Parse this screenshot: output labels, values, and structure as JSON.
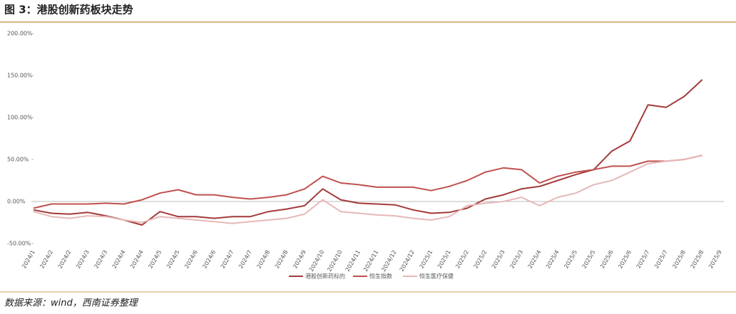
{
  "chart_data": {
    "type": "line",
    "title": "图 3：港股创新药板块走势",
    "source": "数据来源：wind，西南证券整理",
    "categories": [
      "2024/1",
      "2024/2",
      "2024/2",
      "2024/3",
      "2024/3",
      "2024/4",
      "2024/4",
      "2024/5",
      "2024/5",
      "2024/6",
      "2024/6",
      "2024/7",
      "2024/7",
      "2024/8",
      "2024/8",
      "2024/9",
      "2024/10",
      "2024/10",
      "2024/11",
      "2024/11",
      "2024/12",
      "2024/12",
      "2025/1",
      "2025/1",
      "2025/2",
      "2025/2",
      "2025/3",
      "2025/3",
      "2025/4",
      "2025/4",
      "2025/5",
      "2025/5",
      "2025/6",
      "2025/6",
      "2025/7",
      "2025/7",
      "2025/8",
      "2025/8",
      "2025/9"
    ],
    "series": [
      {
        "name": "港股创新药标的",
        "color": "#a33a3a",
        "values": [
          -10,
          -14,
          -15,
          -13,
          -17,
          -22,
          -28,
          -12,
          -18,
          -18,
          -20,
          -18,
          -18,
          -12,
          -9,
          -5,
          15,
          2,
          -2,
          -3,
          -4,
          -10,
          -14,
          -13,
          -8,
          3,
          8,
          15,
          18,
          25,
          32,
          38,
          60,
          72,
          115,
          112,
          125,
          145,
          null
        ]
      },
      {
        "name": "恒生指数",
        "color": "#c0504d",
        "values": [
          -8,
          -3,
          -3,
          -3,
          -2,
          -3,
          2,
          10,
          14,
          8,
          8,
          5,
          3,
          5,
          8,
          15,
          30,
          22,
          20,
          17,
          17,
          17,
          13,
          18,
          25,
          35,
          40,
          38,
          22,
          30,
          35,
          38,
          42,
          42,
          48,
          48,
          50,
          55,
          null
        ]
      },
      {
        "name": "恒生医疗保健",
        "color": "#e6b8b7",
        "values": [
          -12,
          -18,
          -20,
          -17,
          -18,
          -22,
          -25,
          -18,
          -20,
          -22,
          -24,
          -26,
          -24,
          -22,
          -20,
          -15,
          2,
          -12,
          -14,
          -16,
          -17,
          -20,
          -22,
          -18,
          -5,
          -2,
          0,
          5,
          -5,
          5,
          10,
          20,
          25,
          35,
          45,
          48,
          50,
          55,
          null
        ]
      }
    ],
    "ylim": [
      -50,
      200
    ],
    "yticks": [
      {
        "value": -50,
        "label": "-50.00%"
      },
      {
        "value": 0,
        "label": "0.00%"
      },
      {
        "value": 50,
        "label": "50.00%"
      },
      {
        "value": 100,
        "label": "100.00%"
      },
      {
        "value": 150,
        "label": "150.00%"
      },
      {
        "value": 200,
        "label": "200.00%"
      }
    ],
    "grid": false,
    "legend": "bottom"
  }
}
